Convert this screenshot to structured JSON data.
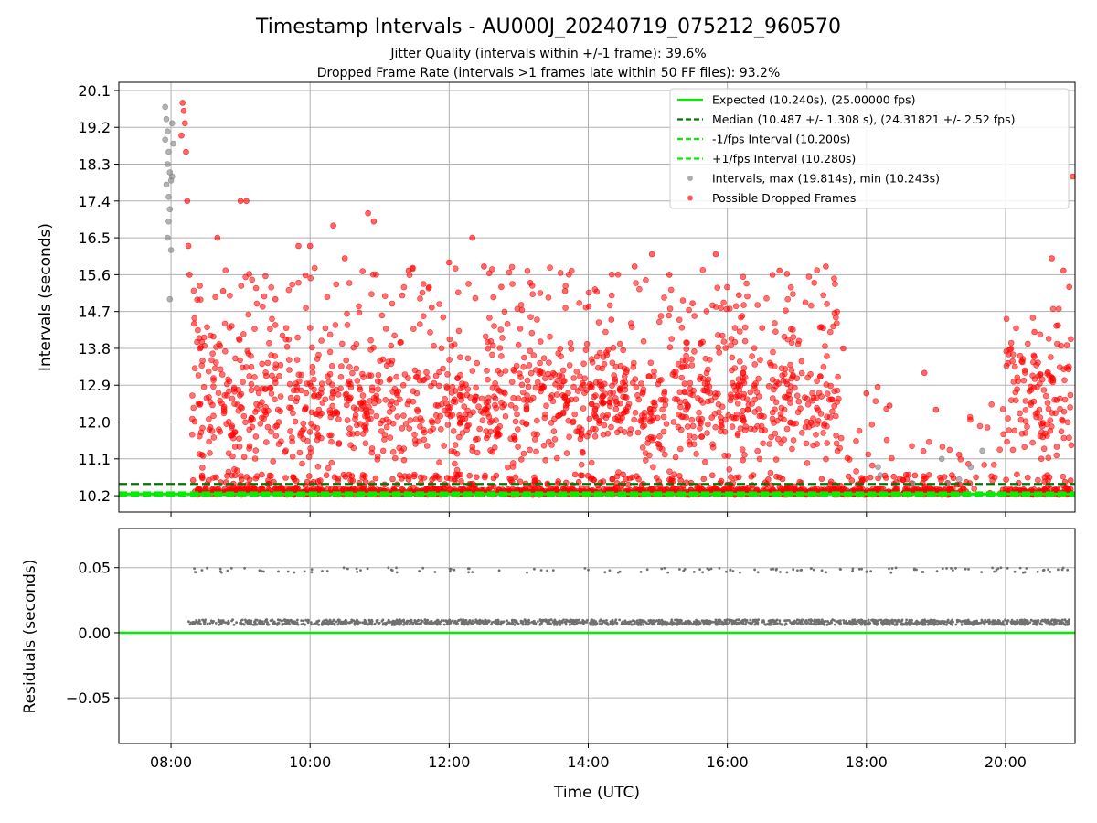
{
  "title": "Timestamp Intervals - AU000J_20240719_075212_960570",
  "subtitle1": "Jitter Quality (intervals within +/-1 frame): 39.6%",
  "subtitle2": "Dropped Frame Rate (intervals >1 frames late within 50 FF files): 93.2%",
  "chart_data": [
    {
      "type": "scatter",
      "panel": "top",
      "ylabel": "Intervals (seconds)",
      "y_ticks": [
        "10.2",
        "11.1",
        "12.0",
        "12.9",
        "13.8",
        "14.7",
        "15.6",
        "16.5",
        "17.4",
        "18.3",
        "19.2",
        "20.1"
      ],
      "ylim": [
        9.8,
        20.3
      ],
      "x_range": [
        "07:15",
        "21:00"
      ],
      "grid": true,
      "legend_position": "top-right",
      "series": [
        {
          "name": "Expected (10.240s), (25.00000 fps)",
          "kind": "hline",
          "y": 10.24,
          "color": "#00ee00",
          "style": "solid"
        },
        {
          "name": "Median (10.487 +/- 1.308 s), (24.31821 +/- 2.52 fps)",
          "kind": "hline",
          "y": 10.487,
          "color": "#007700",
          "style": "dashed"
        },
        {
          "name": "-1/fps Interval (10.200s)",
          "kind": "hline",
          "y": 10.2,
          "color": "#00ee00",
          "style": "dashed"
        },
        {
          "name": "+1/fps Interval (10.280s)",
          "kind": "hline",
          "y": 10.28,
          "color": "#00ee00",
          "style": "dashed"
        },
        {
          "name": "Intervals, max (19.814s), min (10.243s)",
          "kind": "points",
          "color": "#808080",
          "points": [
            [
              "07:55",
              19.7
            ],
            [
              "07:56",
              19.4
            ],
            [
              "07:57",
              19.1
            ],
            [
              "07:55",
              18.9
            ],
            [
              "07:58",
              18.6
            ],
            [
              "07:57",
              18.3
            ],
            [
              "07:59",
              18.1
            ],
            [
              "07:56",
              17.8
            ],
            [
              "07:58",
              17.5
            ],
            [
              "08:00",
              17.9
            ],
            [
              "07:59",
              17.2
            ],
            [
              "07:58",
              16.9
            ],
            [
              "07:57",
              16.5
            ],
            [
              "08:00",
              16.2
            ],
            [
              "07:59",
              15.0
            ],
            [
              "08:01",
              19.3
            ],
            [
              "08:02",
              18.8
            ],
            [
              "08:01",
              18.0
            ],
            [
              "18:10",
              10.9
            ],
            [
              "18:12",
              10.7
            ],
            [
              "19:05",
              11.1
            ],
            [
              "19:10",
              10.5
            ],
            [
              "19:30",
              10.9
            ],
            [
              "19:40",
              11.3
            ],
            [
              "19:20",
              10.6
            ],
            [
              "18:40",
              10.5
            ]
          ]
        },
        {
          "name": "Possible Dropped Frames",
          "kind": "points",
          "color": "#ff0000",
          "points": [
            [
              "08:10",
              19.8
            ],
            [
              "08:11",
              19.6
            ],
            [
              "08:12",
              19.3
            ],
            [
              "08:09",
              19.0
            ],
            [
              "08:13",
              18.6
            ],
            [
              "08:14",
              17.4
            ],
            [
              "08:15",
              16.3
            ],
            [
              "08:16",
              15.6
            ],
            [
              "08:20",
              14.4
            ],
            [
              "08:25",
              13.8
            ],
            [
              "08:40",
              16.5
            ],
            [
              "08:45",
              15.2
            ],
            [
              "09:00",
              17.4
            ],
            [
              "09:05",
              17.4
            ],
            [
              "09:30",
              15.0
            ],
            [
              "09:50",
              16.3
            ],
            [
              "10:00",
              16.3
            ],
            [
              "10:20",
              16.8
            ],
            [
              "10:30",
              16.0
            ],
            [
              "10:50",
              17.1
            ],
            [
              "10:55",
              16.9
            ],
            [
              "11:25",
              15.7
            ],
            [
              "11:45",
              14.8
            ],
            [
              "12:00",
              15.9
            ],
            [
              "12:20",
              16.5
            ],
            [
              "12:30",
              15.8
            ],
            [
              "12:45",
              15.3
            ],
            [
              "13:10",
              15.4
            ],
            [
              "13:40",
              15.2
            ],
            [
              "14:20",
              14.5
            ],
            [
              "14:40",
              15.8
            ],
            [
              "14:55",
              16.1
            ],
            [
              "15:10",
              15.6
            ],
            [
              "15:30",
              14.9
            ],
            [
              "15:50",
              16.1
            ],
            [
              "16:10",
              15.1
            ],
            [
              "16:30",
              14.3
            ],
            [
              "16:45",
              15.7
            ],
            [
              "17:15",
              15.4
            ],
            [
              "17:25",
              15.8
            ],
            [
              "17:40",
              13.8
            ],
            [
              "18:00",
              12.7
            ],
            [
              "18:20",
              12.4
            ],
            [
              "18:50",
              13.2
            ],
            [
              "19:00",
              12.3
            ],
            [
              "19:20",
              11.2
            ],
            [
              "20:10",
              12.8
            ],
            [
              "20:25",
              14.2
            ],
            [
              "20:40",
              16.0
            ],
            [
              "20:50",
              15.7
            ],
            [
              "20:55",
              15.3
            ],
            [
              "20:58",
              18.0
            ]
          ]
        }
      ]
    },
    {
      "type": "scatter",
      "panel": "bottom",
      "xlabel": "Time (UTC)",
      "ylabel": "Residuals (seconds)",
      "x_ticks": [
        "08:00",
        "10:00",
        "12:00",
        "14:00",
        "16:00",
        "18:00",
        "20:00"
      ],
      "y_ticks": [
        "0.05",
        "0.00",
        "−0.05"
      ],
      "ylim": [
        -0.085,
        0.08
      ],
      "grid": true,
      "series": [
        {
          "name": "zero",
          "kind": "hline",
          "y": 0.0,
          "color": "#00ee00",
          "style": "solid"
        },
        {
          "name": "residuals",
          "kind": "points",
          "color": "#707070",
          "bands": [
            {
              "y": 0.008,
              "spread": 0.002,
              "from": "08:15",
              "to": "20:55"
            },
            {
              "y": 0.048,
              "spread": 0.002,
              "from": "08:15",
              "to": "20:55"
            }
          ]
        }
      ]
    }
  ]
}
